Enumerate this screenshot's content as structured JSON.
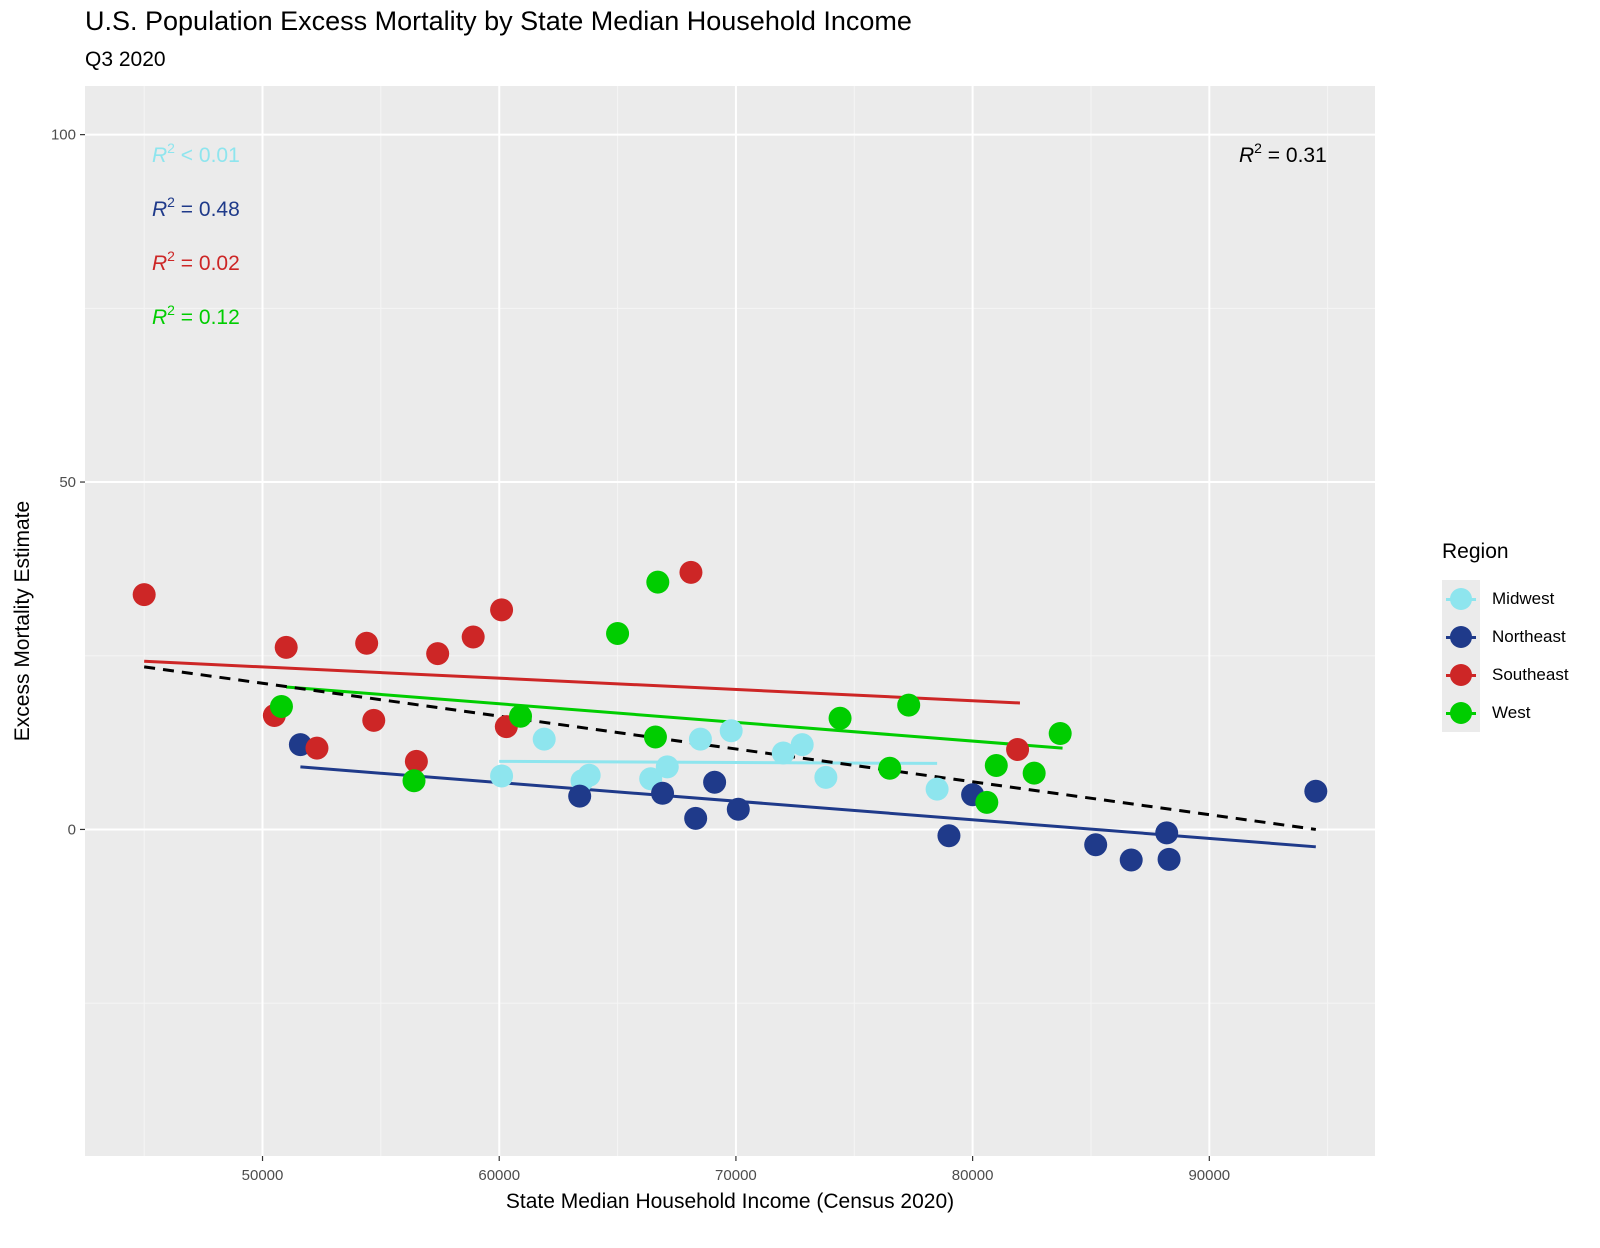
{
  "title": "U.S. Population Excess Mortality by State Median Household Income",
  "subtitle": "Q3 2020",
  "chart_data": {
    "type": "scatter",
    "title": "U.S. Population Excess Mortality by State Median Household Income",
    "subtitle": "Q3 2020",
    "xlabel": "State Median Household Income (Census 2020)",
    "ylabel": "Excess Mortality Estimate",
    "xlim": [
      42500,
      97000
    ],
    "ylim": [
      -47,
      107
    ],
    "x_ticks": [
      50000,
      60000,
      70000,
      80000,
      90000
    ],
    "y_ticks": [
      0,
      50,
      100
    ],
    "grid": true,
    "legend_title": "Region",
    "legend_position": "right",
    "series": [
      {
        "name": "Midwest",
        "color": "#8ee5ee",
        "r2_text": "< 0.01",
        "trend": [
          [
            60000,
            9.8
          ],
          [
            78500,
            9.5
          ]
        ],
        "points": [
          [
            60100,
            7.7
          ],
          [
            61900,
            13.0
          ],
          [
            63500,
            7.0
          ],
          [
            63800,
            7.8
          ],
          [
            66400,
            7.3
          ],
          [
            67100,
            9.0
          ],
          [
            68500,
            13.0
          ],
          [
            69800,
            14.2
          ],
          [
            72000,
            11.0
          ],
          [
            72800,
            12.2
          ],
          [
            73800,
            7.5
          ],
          [
            78500,
            5.8
          ]
        ]
      },
      {
        "name": "Northeast",
        "color": "#1f3a8a",
        "r2_text": "= 0.48",
        "trend": [
          [
            51600,
            9.0
          ],
          [
            94500,
            -2.5
          ]
        ],
        "points": [
          [
            51600,
            12.2
          ],
          [
            63400,
            4.8
          ],
          [
            66900,
            5.2
          ],
          [
            68300,
            1.6
          ],
          [
            69100,
            6.8
          ],
          [
            70100,
            2.9
          ],
          [
            79000,
            -0.9
          ],
          [
            80000,
            5.0
          ],
          [
            85200,
            -2.2
          ],
          [
            86700,
            -4.4
          ],
          [
            88200,
            -0.5
          ],
          [
            88300,
            -4.3
          ],
          [
            94500,
            5.5
          ]
        ]
      },
      {
        "name": "Southeast",
        "color": "#cd2626",
        "r2_text": "= 0.02",
        "trend": [
          [
            45000,
            24.2
          ],
          [
            82000,
            18.2
          ]
        ],
        "points": [
          [
            45000,
            33.8
          ],
          [
            50500,
            16.4
          ],
          [
            51000,
            26.2
          ],
          [
            52300,
            11.7
          ],
          [
            54400,
            26.8
          ],
          [
            54700,
            15.7
          ],
          [
            56500,
            9.8
          ],
          [
            57400,
            25.3
          ],
          [
            58900,
            27.7
          ],
          [
            60100,
            31.6
          ],
          [
            60300,
            14.8
          ],
          [
            68100,
            37.0
          ],
          [
            81900,
            11.5
          ]
        ]
      },
      {
        "name": "West",
        "color": "#00cd00",
        "r2_text": "= 0.12",
        "trend": [
          [
            51000,
            20.5
          ],
          [
            83800,
            11.7
          ]
        ],
        "points": [
          [
            50800,
            17.7
          ],
          [
            56400,
            7.0
          ],
          [
            60900,
            16.3
          ],
          [
            65000,
            28.2
          ],
          [
            66600,
            13.3
          ],
          [
            66700,
            35.6
          ],
          [
            74400,
            16.0
          ],
          [
            76500,
            8.8
          ],
          [
            77300,
            17.9
          ],
          [
            80600,
            3.9
          ],
          [
            81000,
            9.2
          ],
          [
            82600,
            8.1
          ],
          [
            83700,
            13.8
          ]
        ]
      }
    ],
    "overall": {
      "r2_text": "= 0.31",
      "color": "#000000",
      "linestyle": "dashed",
      "trend": [
        [
          45000,
          23.4
        ],
        [
          94500,
          0.0
        ]
      ]
    },
    "annotations": [
      {
        "text": "R² < 0.01",
        "color": "#8ee5ee",
        "position": "top-left"
      },
      {
        "text": "R² = 0.48",
        "color": "#1f3a8a",
        "position": "top-left"
      },
      {
        "text": "R² = 0.02",
        "color": "#cd2626",
        "position": "top-left"
      },
      {
        "text": "R² = 0.12",
        "color": "#00cd00",
        "position": "top-left"
      },
      {
        "text": "R² = 0.31",
        "color": "#000000",
        "position": "top-right"
      }
    ]
  }
}
